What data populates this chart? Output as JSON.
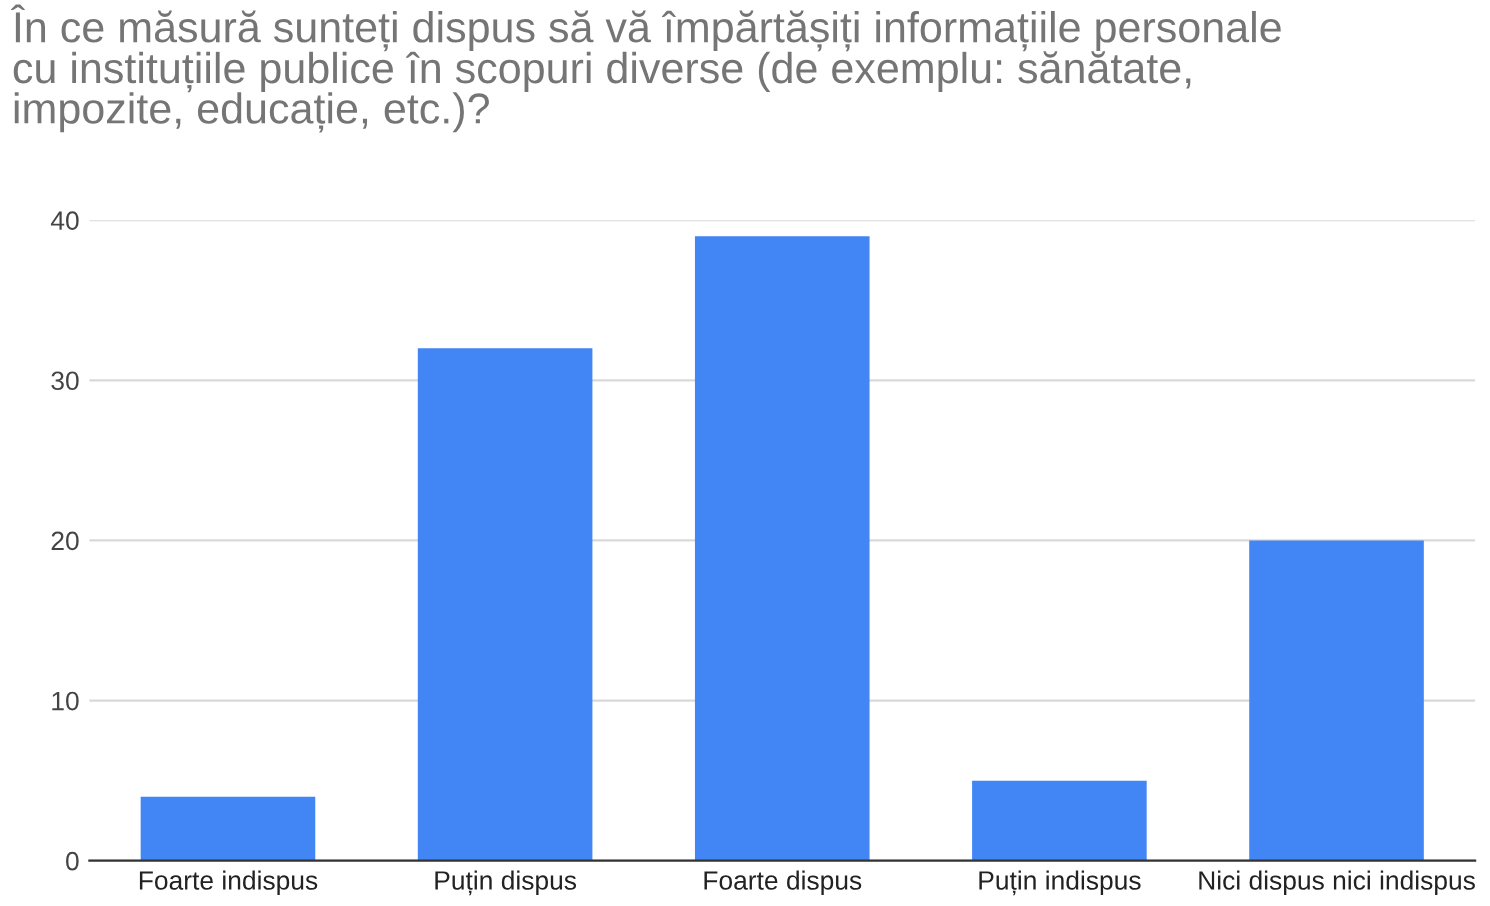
{
  "chart_data": {
    "type": "bar",
    "title": "În ce măsură sunteți dispus să vă împărtășiți informațiile personale\ncu instituțiile publice în scopuri diverse (de exemplu: sănătate,\nimpozite, educație, etc.)?",
    "categories": [
      "Foarte indispus",
      "Puțin dispus",
      "Foarte dispus",
      "Puțin indispus",
      "Nici dispus nici indispus"
    ],
    "values": [
      4,
      32,
      39,
      5,
      20
    ],
    "color": "#4285f4",
    "ylim": [
      0,
      40
    ],
    "yticks": [
      0,
      10,
      20,
      30,
      40
    ],
    "grid": "y",
    "legend": false
  }
}
